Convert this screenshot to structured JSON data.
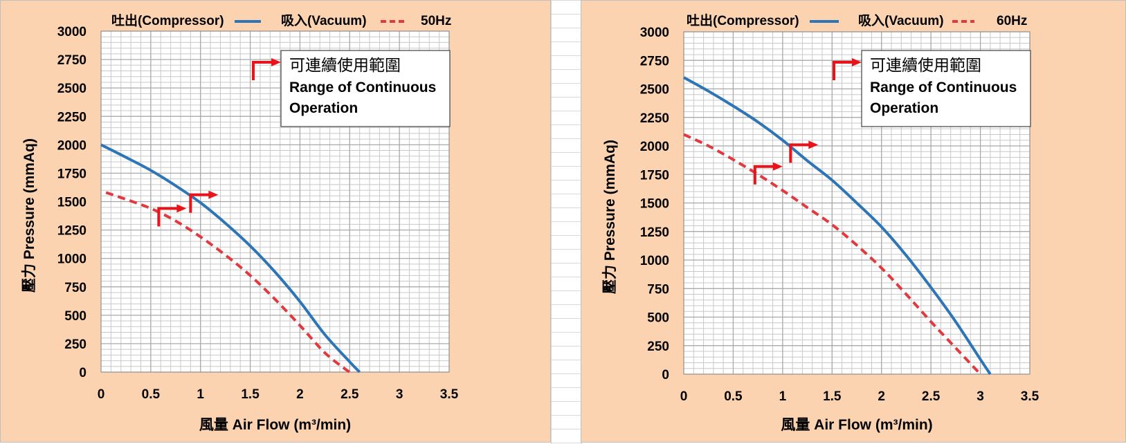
{
  "colors": {
    "panel_bg": "#fbd3b0",
    "compressor": "#2e75b6",
    "vacuum": "#e0393f",
    "arrow": "#e8141a",
    "grid": "#a6a6a6"
  },
  "chart_data": [
    {
      "type": "line",
      "frequency_label": "50Hz",
      "xlabel": "風量 Air Flow (m³/min)",
      "ylabel": "壓力 Pressure (mmAq)",
      "xlim": [
        0,
        3.5
      ],
      "ylim": [
        0,
        3000
      ],
      "x_ticks": [
        "0",
        "0.5",
        "1",
        "1.5",
        "2",
        "2.5",
        "3",
        "3.5"
      ],
      "y_ticks": [
        "0",
        "250",
        "500",
        "750",
        "1000",
        "1250",
        "1500",
        "1750",
        "2000",
        "2250",
        "2500",
        "2750",
        "3000"
      ],
      "grid": true,
      "legend_position": "top",
      "series": [
        {
          "name": "吐出(Compressor)",
          "style": "solid",
          "x": [
            0,
            0.25,
            0.5,
            0.75,
            1.0,
            1.25,
            1.5,
            1.75,
            2.0,
            2.25,
            2.5,
            2.6
          ],
          "y": [
            2000,
            1890,
            1775,
            1640,
            1490,
            1310,
            1110,
            880,
            620,
            330,
            90,
            0
          ]
        },
        {
          "name": "吸入(Vacuum)",
          "style": "dashed",
          "x": [
            0.05,
            0.25,
            0.5,
            0.75,
            1.0,
            1.25,
            1.5,
            1.75,
            2.0,
            2.25,
            2.45,
            2.5
          ],
          "y": [
            1580,
            1520,
            1440,
            1330,
            1190,
            1030,
            850,
            640,
            410,
            170,
            30,
            0
          ]
        }
      ],
      "annotation": {
        "text_zh": "可連續使用範圍",
        "text_en_line1": "Range of Continuous",
        "text_en_line2": "Operation"
      },
      "operation_markers": [
        {
          "series": "吐出(Compressor)",
          "x": 0.9,
          "y": 1560
        },
        {
          "series": "吸入(Vacuum)",
          "x": 0.58,
          "y": 1440
        }
      ]
    },
    {
      "type": "line",
      "frequency_label": "60Hz",
      "xlabel": "風量 Air Flow (m³/min)",
      "ylabel": "壓力 Pressure (mmAq)",
      "xlim": [
        0,
        3.5
      ],
      "ylim": [
        0,
        3000
      ],
      "x_ticks": [
        "0",
        "0.5",
        "1",
        "1.5",
        "2",
        "2.5",
        "3",
        "3.5"
      ],
      "y_ticks": [
        "0",
        "250",
        "500",
        "750",
        "1000",
        "1250",
        "1500",
        "1750",
        "2000",
        "2250",
        "2500",
        "2750",
        "3000"
      ],
      "grid": true,
      "legend_position": "top",
      "series": [
        {
          "name": "吐出(Compressor)",
          "style": "solid",
          "x": [
            0,
            0.25,
            0.5,
            0.75,
            1.0,
            1.25,
            1.5,
            1.75,
            2.0,
            2.25,
            2.5,
            2.75,
            3.0,
            3.1
          ],
          "y": [
            2600,
            2480,
            2350,
            2210,
            2050,
            1870,
            1700,
            1500,
            1290,
            1040,
            760,
            460,
            130,
            0
          ]
        },
        {
          "name": "吸入(Vacuum)",
          "style": "dashed",
          "x": [
            0,
            0.25,
            0.5,
            0.75,
            1.0,
            1.25,
            1.5,
            1.75,
            2.0,
            2.25,
            2.5,
            2.75,
            3.0
          ],
          "y": [
            2100,
            2000,
            1880,
            1750,
            1610,
            1460,
            1310,
            1130,
            930,
            700,
            460,
            230,
            0
          ]
        }
      ],
      "annotation": {
        "text_zh": "可連續使用範圍",
        "text_en_line1": "Range of Continuous",
        "text_en_line2": "Operation"
      },
      "operation_markers": [
        {
          "series": "吐出(Compressor)",
          "x": 1.08,
          "y": 2010
        },
        {
          "series": "吸入(Vacuum)",
          "x": 0.72,
          "y": 1820
        }
      ]
    }
  ]
}
